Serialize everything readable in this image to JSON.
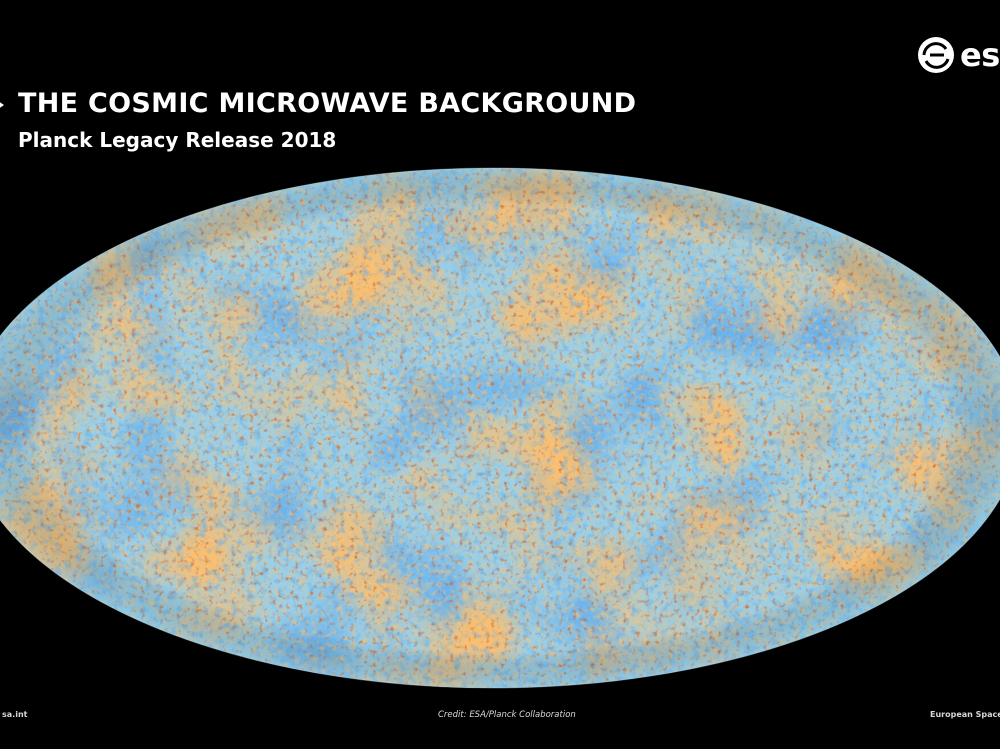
{
  "header": {
    "title": "THE COSMIC MICROWAVE BACKGROUND",
    "subtitle": "Planck Legacy Release 2018"
  },
  "logo": {
    "text": "esa",
    "icon": "esa-logo-icon"
  },
  "image": {
    "subject": "Planck all-sky map of the cosmic microwave background",
    "colors": {
      "background": "#000000",
      "cold": "#1f5fc9",
      "cool": "#7ec3e8",
      "neutral": "#f2d38a",
      "warm": "#f08a2c",
      "hot": "#b5300e"
    }
  },
  "footer": {
    "website": "sa.int",
    "credit": "Credit: ESA/Planck Collaboration",
    "agency": "European Space A"
  }
}
